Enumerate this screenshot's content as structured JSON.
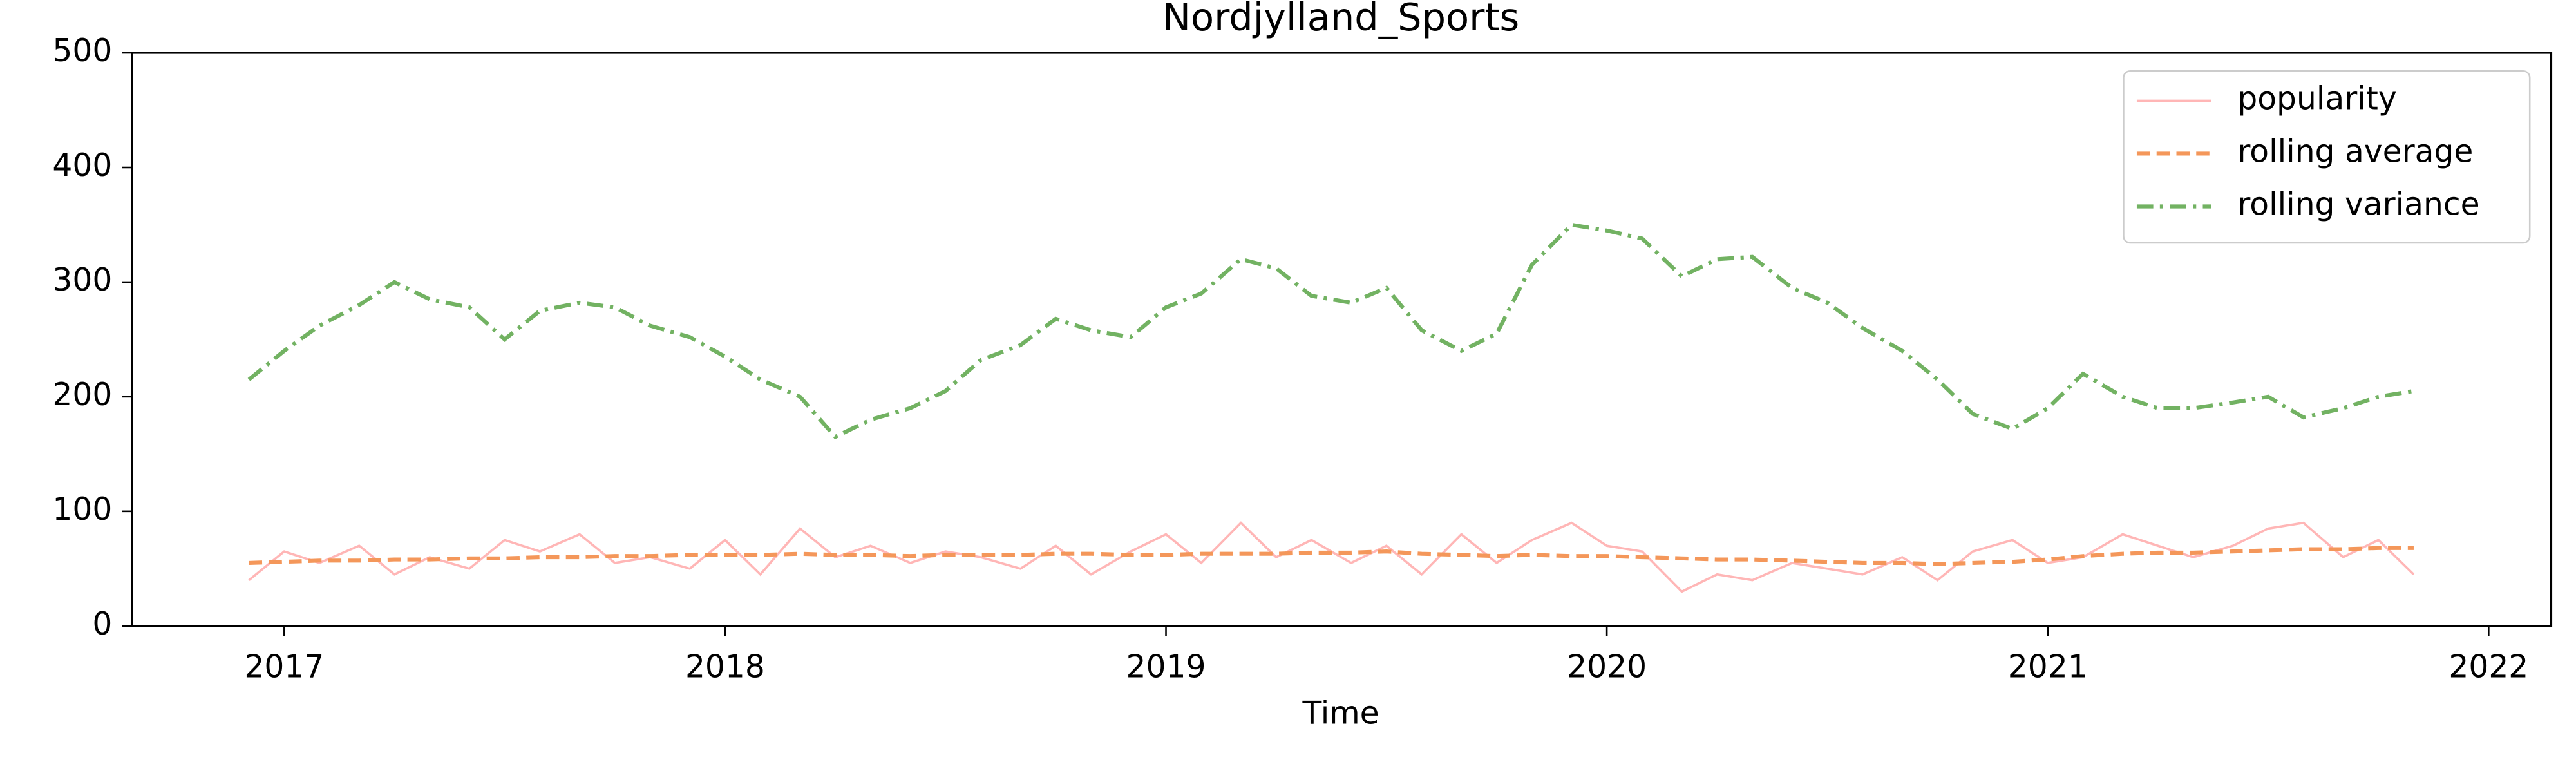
{
  "chart_data": {
    "type": "line",
    "title": "Nordjylland_Sports",
    "xlabel": "Time",
    "x": [
      2016.92,
      2017.0,
      2017.08,
      2017.17,
      2017.25,
      2017.33,
      2017.42,
      2017.5,
      2017.58,
      2017.67,
      2017.75,
      2017.83,
      2017.92,
      2018.0,
      2018.08,
      2018.17,
      2018.25,
      2018.33,
      2018.42,
      2018.5,
      2018.58,
      2018.67,
      2018.75,
      2018.83,
      2018.92,
      2019.0,
      2019.08,
      2019.17,
      2019.25,
      2019.33,
      2019.42,
      2019.5,
      2019.58,
      2019.67,
      2019.75,
      2019.83,
      2019.92,
      2020.0,
      2020.08,
      2020.17,
      2020.25,
      2020.33,
      2020.42,
      2020.5,
      2020.58,
      2020.67,
      2020.75,
      2020.83,
      2020.92,
      2021.0,
      2021.08,
      2021.17,
      2021.25,
      2021.33,
      2021.42,
      2021.5,
      2021.58,
      2021.67,
      2021.75,
      2021.83
    ],
    "series": [
      {
        "name": "popularity",
        "color": "#ffb6b6",
        "linestyle": "solid",
        "values": [
          40,
          65,
          55,
          70,
          45,
          60,
          50,
          75,
          65,
          80,
          55,
          60,
          50,
          75,
          45,
          85,
          60,
          70,
          55,
          65,
          60,
          50,
          70,
          45,
          65,
          80,
          55,
          90,
          60,
          75,
          55,
          70,
          45,
          80,
          55,
          75,
          90,
          70,
          65,
          30,
          45,
          40,
          55,
          50,
          45,
          60,
          40,
          65,
          75,
          55,
          60,
          80,
          70,
          60,
          70,
          85,
          90,
          60,
          75,
          45
        ]
      },
      {
        "name": "rolling average",
        "color": "#f4975a",
        "linestyle": "dashed",
        "values": [
          55,
          56,
          57,
          57,
          58,
          58,
          59,
          59,
          60,
          60,
          61,
          61,
          62,
          62,
          62,
          63,
          62,
          62,
          61,
          62,
          62,
          62,
          63,
          63,
          62,
          62,
          63,
          63,
          63,
          64,
          64,
          65,
          63,
          62,
          61,
          62,
          61,
          61,
          60,
          59,
          58,
          58,
          57,
          56,
          55,
          55,
          54,
          55,
          56,
          58,
          61,
          63,
          64,
          64,
          65,
          66,
          67,
          67,
          68,
          68
        ]
      },
      {
        "name": "rolling variance",
        "color": "#72b262",
        "linestyle": "dashdot",
        "values": [
          215,
          240,
          262,
          280,
          300,
          285,
          278,
          250,
          275,
          282,
          278,
          262,
          252,
          235,
          215,
          200,
          165,
          180,
          190,
          205,
          232,
          245,
          268,
          258,
          252,
          278,
          290,
          320,
          312,
          288,
          282,
          295,
          258,
          240,
          255,
          315,
          350,
          345,
          338,
          305,
          320,
          322,
          295,
          282,
          260,
          240,
          215,
          185,
          172,
          190,
          220,
          200,
          190,
          190,
          195,
          200,
          182,
          190,
          200,
          205
        ]
      }
    ],
    "xlim": [
      2016.655,
      2022.142
    ],
    "xticks": [
      2017,
      2018,
      2019,
      2020,
      2021,
      2022
    ],
    "ylim": [
      0,
      500
    ],
    "yticks": [
      0,
      100,
      200,
      300,
      400,
      500
    ],
    "grid": false,
    "legend": "upper right"
  }
}
